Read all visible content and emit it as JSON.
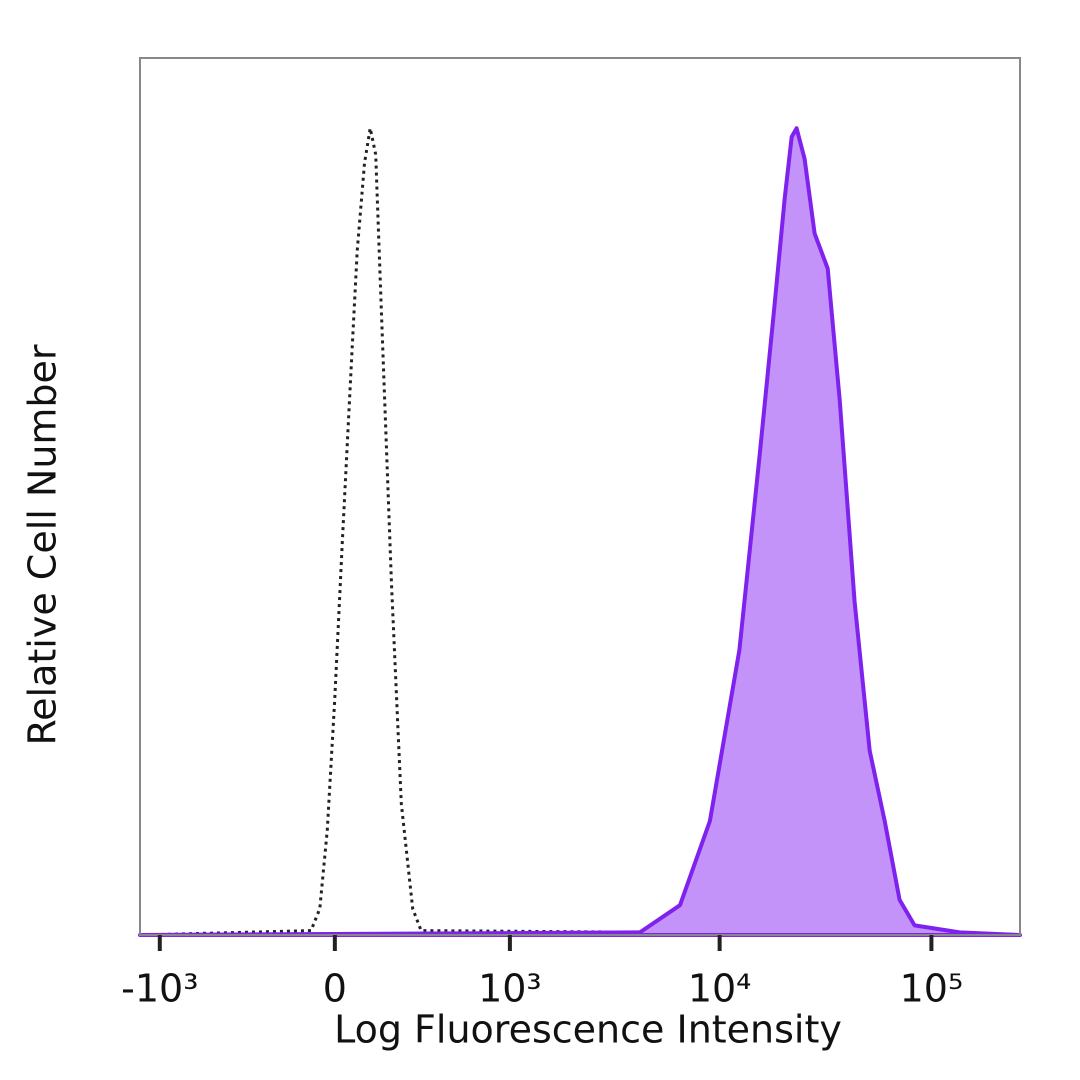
{
  "chart_data": {
    "type": "histogram-overlay",
    "xlabel": "Log Fluorescence Intensity",
    "ylabel": "Relative Cell Number",
    "xscale": "asinh",
    "xlim": [
      -1250,
      262000
    ],
    "ylim": [
      0,
      100
    ],
    "xticks": [
      {
        "value": -1000,
        "label": "-10³"
      },
      0,
      {
        "value": 1000,
        "label": "10³"
      },
      {
        "value": 10000,
        "label": "10⁴"
      },
      {
        "value": 100000,
        "label": "10⁵"
      }
    ],
    "series": [
      {
        "color": "#222222",
        "dash": "dotted",
        "x": [
          -1250,
          -80,
          -50,
          -25,
          0,
          25,
          55,
          75,
          100,
          120,
          140,
          160,
          200,
          240,
          290,
          330,
          262000
        ],
        "values": [
          0,
          0.5,
          3,
          12,
          27,
          45,
          65,
          78,
          88,
          92,
          89,
          72,
          40,
          15,
          3,
          0.5,
          0
        ]
      },
      {
        "color": "#7f22ee",
        "fill": "#c393fa",
        "dash": "solid",
        "x": [
          -1250,
          4200,
          6500,
          9000,
          12400,
          15500,
          18200,
          20300,
          21900,
          23100,
          25200,
          28100,
          32400,
          36900,
          43400,
          51100,
          60200,
          70800,
          83300,
          135900,
          262000
        ],
        "values": [
          0,
          0.3,
          3.4,
          13,
          32.5,
          55,
          72,
          84,
          91,
          92,
          88.5,
          80,
          76,
          61,
          38,
          21,
          13,
          4,
          1.1,
          0.3,
          0
        ]
      }
    ]
  }
}
